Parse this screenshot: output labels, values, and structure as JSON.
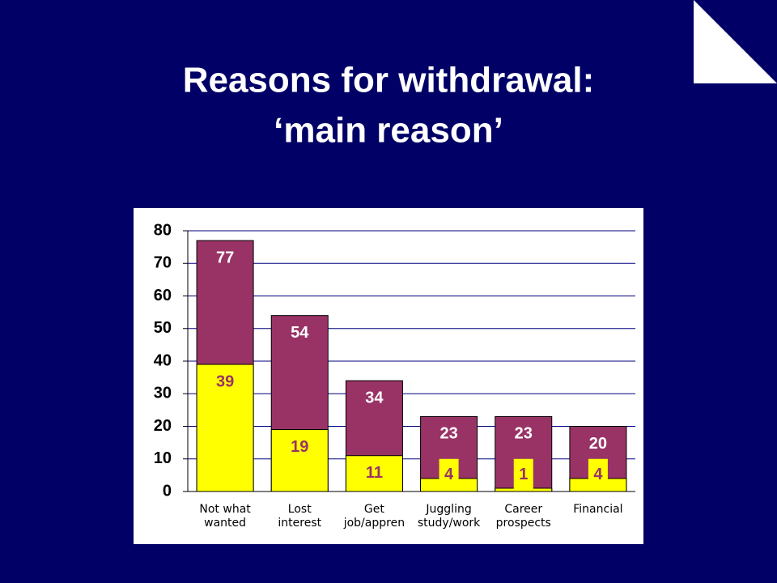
{
  "chart_data": {
    "type": "bar",
    "title": "Reasons for withdrawal:",
    "subtitle": "‘main reason’",
    "categories": [
      "Not what\nwanted",
      "Lost\ninterest",
      "Get\njob/appren",
      "Juggling\nstudy/work",
      "Career\nprospects",
      "Financial"
    ],
    "series": [
      {
        "color": "#993366",
        "values": [
          77,
          54,
          34,
          23,
          23,
          20
        ]
      },
      {
        "color": "#ffff00",
        "values": [
          39,
          19,
          11,
          4,
          1,
          4
        ]
      }
    ],
    "overlap": true,
    "ylim": [
      0,
      80
    ],
    "yticks": [
      0,
      10,
      20,
      30,
      40,
      50,
      60,
      70,
      80
    ],
    "grid": true
  }
}
